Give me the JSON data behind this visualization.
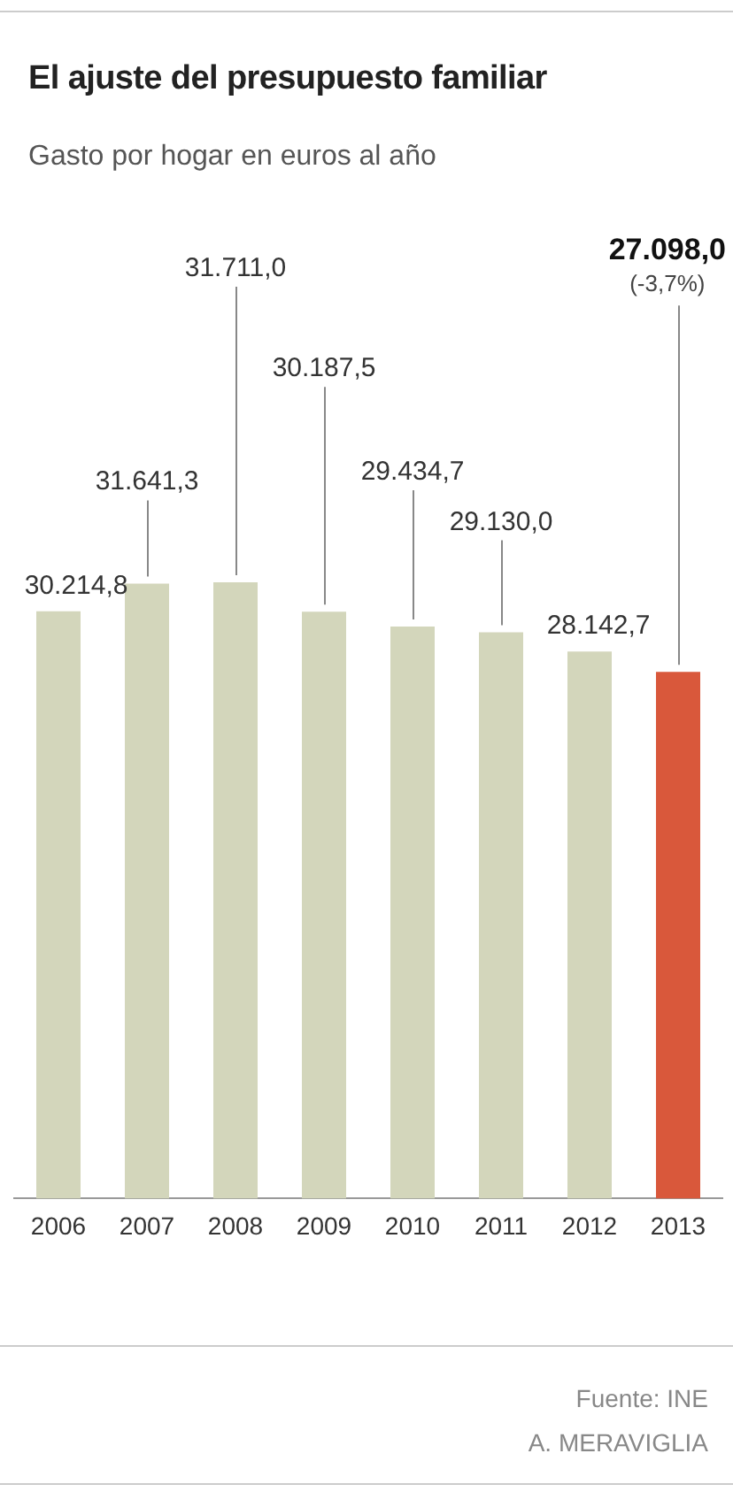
{
  "chart_data": {
    "type": "bar",
    "title": "El ajuste del presupuesto familiar",
    "subtitle": "Gasto por hogar en euros al año",
    "categories": [
      "2006",
      "2007",
      "2008",
      "2009",
      "2010",
      "2011",
      "2012",
      "2013"
    ],
    "values": [
      30214.8,
      31641.3,
      31711.0,
      30187.5,
      29434.7,
      29130.0,
      28142.7,
      27098.0
    ],
    "colors": [
      "#d3d6bb",
      "#d3d6bb",
      "#d3d6bb",
      "#d3d6bb",
      "#d3d6bb",
      "#d3d6bb",
      "#d3d6bb",
      "#d9583b"
    ],
    "value_labels": [
      "30.214,8",
      "31.641,3",
      "31.711,0",
      "30.187,5",
      "29.434,7",
      "29.130,0",
      "28.142,7",
      "27.098,0"
    ],
    "annotations": [
      {
        "text": "(-3,7%)",
        "x": "2013",
        "y": 27098.0
      },
      "Fuente: INE",
      "A. MERAVIGLIA"
    ],
    "grid": false,
    "legend": false
  }
}
